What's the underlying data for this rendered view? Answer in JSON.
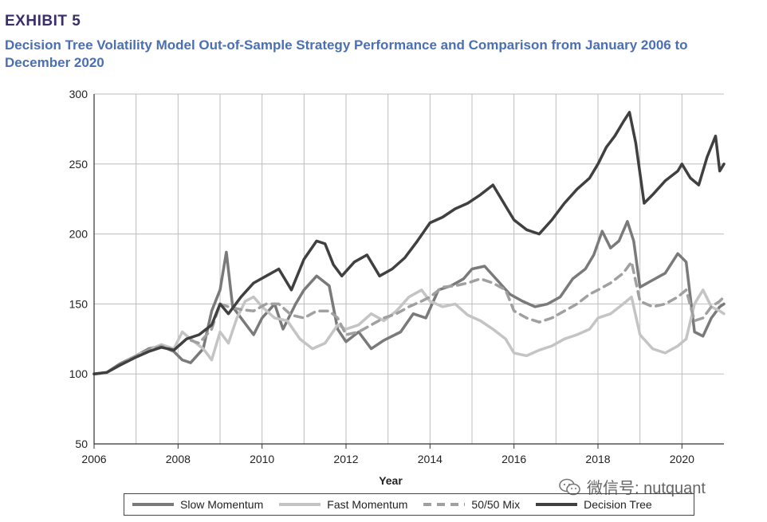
{
  "header": {
    "exhibit": "EXHIBIT 5",
    "title": "Decision Tree Volatility Model Out-of-Sample Strategy Performance and Comparison from January 2006 to December 2020"
  },
  "watermark": {
    "text": "微信号: nutquant"
  },
  "chart_data": {
    "type": "line",
    "title": "Decision Tree Volatility Model Out-of-Sample Strategy Performance and Comparison from January 2006 to December 2020",
    "xlabel": "Year",
    "ylabel": "",
    "xlim": [
      2006,
      2021
    ],
    "ylim": [
      50,
      300
    ],
    "xticks": [
      2006,
      2008,
      2010,
      2012,
      2014,
      2016,
      2018,
      2020
    ],
    "yticks": [
      50,
      100,
      150,
      200,
      250,
      300
    ],
    "grid": true,
    "legend_position": "bottom",
    "series": [
      {
        "name": "Slow Momentum",
        "color": "#7a7a7a",
        "dash": "solid",
        "x": [
          2006,
          2006.3,
          2006.6,
          2007,
          2007.3,
          2007.6,
          2007.9,
          2008.1,
          2008.3,
          2008.6,
          2008.8,
          2009,
          2009.15,
          2009.3,
          2009.5,
          2009.8,
          2010,
          2010.3,
          2010.5,
          2010.8,
          2011,
          2011.3,
          2011.6,
          2011.8,
          2012,
          2012.3,
          2012.6,
          2012.9,
          2013.3,
          2013.6,
          2013.9,
          2014.2,
          2014.5,
          2014.8,
          2015,
          2015.3,
          2015.6,
          2015.9,
          2016.2,
          2016.5,
          2016.8,
          2017.1,
          2017.4,
          2017.7,
          2017.9,
          2018.1,
          2018.3,
          2018.5,
          2018.7,
          2018.85,
          2019,
          2019.3,
          2019.6,
          2019.9,
          2020.1,
          2020.3,
          2020.5,
          2020.7,
          2020.9,
          2021
        ],
        "y": [
          100,
          101,
          107,
          113,
          118,
          120,
          116,
          110,
          108,
          118,
          145,
          160,
          187,
          148,
          140,
          128,
          140,
          150,
          132,
          150,
          160,
          170,
          163,
          132,
          123,
          130,
          118,
          124,
          130,
          143,
          140,
          160,
          163,
          168,
          175,
          177,
          167,
          157,
          152,
          148,
          150,
          155,
          168,
          175,
          185,
          202,
          190,
          195,
          209,
          195,
          162,
          167,
          172,
          186,
          180,
          130,
          127,
          140,
          148,
          150
        ]
      },
      {
        "name": "Fast Momentum",
        "color": "#c4c4c4",
        "dash": "solid",
        "x": [
          2006,
          2006.3,
          2006.6,
          2007,
          2007.3,
          2007.6,
          2007.9,
          2008.1,
          2008.3,
          2008.6,
          2008.8,
          2009,
          2009.2,
          2009.4,
          2009.6,
          2009.8,
          2010,
          2010.3,
          2010.6,
          2010.9,
          2011.2,
          2011.5,
          2011.8,
          2012,
          2012.3,
          2012.6,
          2012.9,
          2013.2,
          2013.5,
          2013.8,
          2014,
          2014.3,
          2014.6,
          2014.9,
          2015.2,
          2015.5,
          2015.8,
          2016,
          2016.3,
          2016.6,
          2016.9,
          2017.2,
          2017.5,
          2017.8,
          2018,
          2018.3,
          2018.6,
          2018.8,
          2019,
          2019.3,
          2019.6,
          2019.9,
          2020.1,
          2020.3,
          2020.5,
          2020.7,
          2020.9,
          2021
        ],
        "y": [
          100,
          101,
          106,
          113,
          117,
          121,
          118,
          130,
          125,
          118,
          110,
          130,
          122,
          140,
          152,
          155,
          148,
          140,
          138,
          125,
          118,
          122,
          135,
          132,
          135,
          143,
          138,
          145,
          155,
          160,
          152,
          148,
          150,
          142,
          138,
          132,
          125,
          115,
          113,
          117,
          120,
          125,
          128,
          132,
          140,
          143,
          150,
          155,
          128,
          118,
          115,
          120,
          125,
          150,
          160,
          148,
          145,
          143
        ]
      },
      {
        "name": "50/50 Mix",
        "color": "#a0a0a0",
        "dash": "dashed",
        "x": [
          2006,
          2006.3,
          2006.6,
          2007,
          2007.3,
          2007.6,
          2007.9,
          2008.2,
          2008.5,
          2008.8,
          2009,
          2009.2,
          2009.5,
          2009.8,
          2010.1,
          2010.4,
          2010.7,
          2011,
          2011.3,
          2011.6,
          2011.8,
          2012,
          2012.3,
          2012.6,
          2012.9,
          2013.2,
          2013.5,
          2013.8,
          2014,
          2014.3,
          2014.6,
          2014.9,
          2015.2,
          2015.5,
          2015.8,
          2016,
          2016.3,
          2016.6,
          2016.9,
          2017.2,
          2017.5,
          2017.8,
          2018,
          2018.3,
          2018.6,
          2018.8,
          2019,
          2019.3,
          2019.6,
          2019.9,
          2020.1,
          2020.3,
          2020.5,
          2020.7,
          2020.9,
          2021
        ],
        "y": [
          100,
          101,
          106,
          113,
          117,
          120,
          117,
          125,
          122,
          132,
          150,
          148,
          146,
          145,
          150,
          150,
          142,
          140,
          145,
          145,
          140,
          128,
          130,
          135,
          140,
          143,
          148,
          152,
          155,
          162,
          163,
          165,
          168,
          165,
          160,
          145,
          140,
          137,
          140,
          145,
          150,
          157,
          160,
          165,
          172,
          180,
          152,
          148,
          150,
          155,
          160,
          138,
          140,
          148,
          152,
          155
        ]
      },
      {
        "name": "Decision Tree",
        "color": "#404040",
        "dash": "solid",
        "x": [
          2006,
          2006.3,
          2006.6,
          2007,
          2007.3,
          2007.6,
          2007.9,
          2008.2,
          2008.5,
          2008.8,
          2009,
          2009.2,
          2009.5,
          2009.8,
          2010.1,
          2010.4,
          2010.7,
          2011,
          2011.3,
          2011.5,
          2011.7,
          2011.9,
          2012.2,
          2012.5,
          2012.8,
          2013.1,
          2013.4,
          2013.7,
          2014,
          2014.3,
          2014.6,
          2014.9,
          2015.2,
          2015.5,
          2015.8,
          2016,
          2016.3,
          2016.6,
          2016.9,
          2017.2,
          2017.5,
          2017.8,
          2018,
          2018.2,
          2018.4,
          2018.6,
          2018.75,
          2018.9,
          2019.1,
          2019.3,
          2019.6,
          2019.9,
          2020,
          2020.2,
          2020.4,
          2020.6,
          2020.8,
          2020.9,
          2021
        ],
        "y": [
          100,
          101,
          106,
          112,
          116,
          119,
          117,
          125,
          128,
          135,
          150,
          143,
          155,
          165,
          170,
          175,
          160,
          182,
          195,
          193,
          178,
          170,
          180,
          185,
          170,
          175,
          183,
          195,
          208,
          212,
          218,
          222,
          228,
          235,
          220,
          210,
          203,
          200,
          210,
          222,
          232,
          240,
          250,
          262,
          270,
          280,
          287,
          265,
          222,
          228,
          238,
          245,
          250,
          240,
          235,
          255,
          270,
          245,
          250
        ]
      }
    ]
  }
}
